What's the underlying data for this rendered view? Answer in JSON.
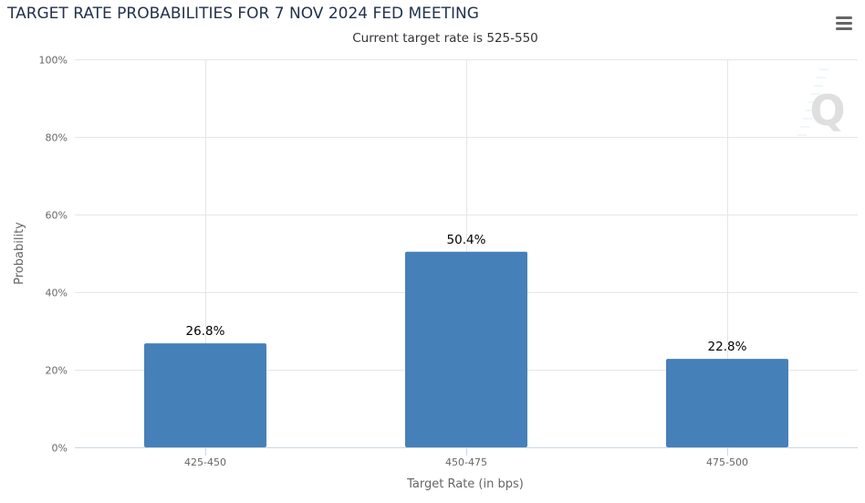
{
  "header": {
    "title": "TARGET RATE PROBABILITIES FOR 7 NOV 2024 FED MEETING",
    "subtitle": "Current target rate is 525-550"
  },
  "toolbar": {
    "menu_icon": "hamburger-menu-icon"
  },
  "watermark": {
    "icon": "q-logo-icon",
    "text": "Q"
  },
  "colors": {
    "bar": "#4680b8",
    "grid": "#e6e6e6",
    "axis": "#ccd6eb",
    "title": "#23324c"
  },
  "chart_data": {
    "type": "bar",
    "title": "TARGET RATE PROBABILITIES FOR 7 NOV 2024 FED MEETING",
    "subtitle": "Current target rate is 525-550",
    "xlabel": "Target Rate (in bps)",
    "ylabel": "Probability",
    "categories": [
      "425-450",
      "450-475",
      "475-500"
    ],
    "values": [
      26.8,
      50.4,
      22.8
    ],
    "data_labels": [
      "26.8%",
      "50.4%",
      "22.8%"
    ],
    "ylim": [
      0,
      100
    ],
    "yticks": [
      0,
      20,
      40,
      60,
      80,
      100
    ],
    "ytick_labels": [
      "0%",
      "20%",
      "40%",
      "60%",
      "80%",
      "100%"
    ],
    "grid": true,
    "legend": "none"
  }
}
